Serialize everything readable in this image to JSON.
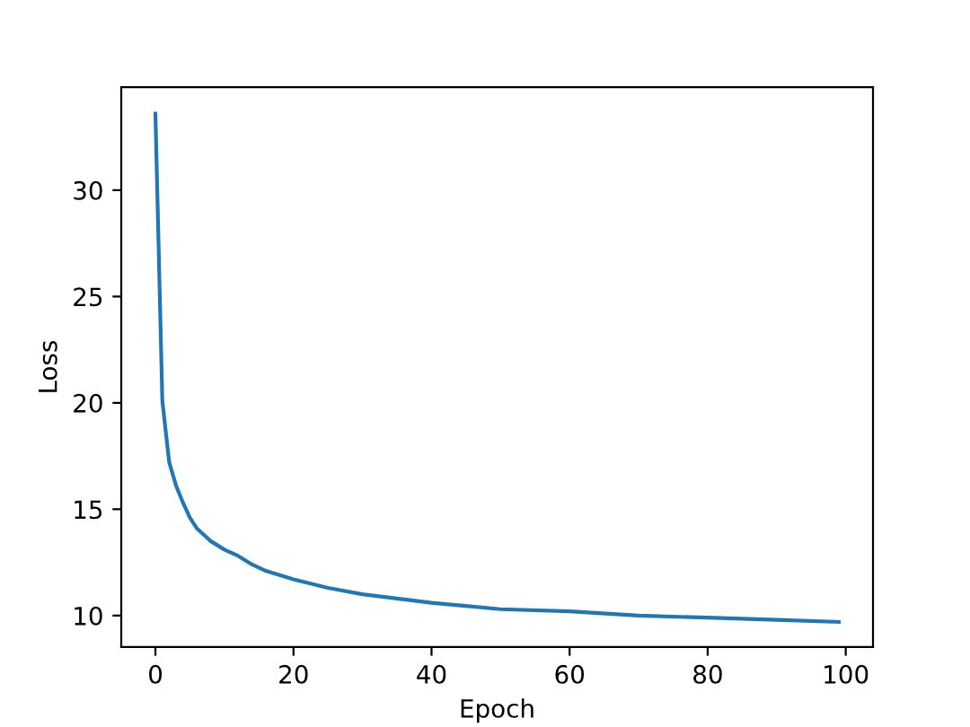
{
  "chart_data": {
    "type": "line",
    "xlabel": "Epoch",
    "ylabel": "Loss",
    "x": [
      0,
      1,
      2,
      3,
      4,
      5,
      6,
      7,
      8,
      9,
      10,
      12,
      14,
      16,
      18,
      20,
      25,
      30,
      35,
      40,
      50,
      60,
      70,
      80,
      90,
      99
    ],
    "series": [
      {
        "color": "#1f77b4",
        "values": [
          33.6,
          20.1,
          17.2,
          16.1,
          15.3,
          14.6,
          14.1,
          13.8,
          13.5,
          13.3,
          13.1,
          12.8,
          12.4,
          12.1,
          11.9,
          11.7,
          11.3,
          11.0,
          10.8,
          10.6,
          10.3,
          10.2,
          10.0,
          9.9,
          9.8,
          9.7
        ]
      }
    ],
    "xlim": [
      -4.95,
      103.95
    ],
    "ylim": [
      8.52,
      34.84
    ],
    "xticks": [
      0,
      20,
      40,
      60,
      80,
      100
    ],
    "yticks": [
      10,
      15,
      20,
      25,
      30
    ],
    "grid": false
  }
}
